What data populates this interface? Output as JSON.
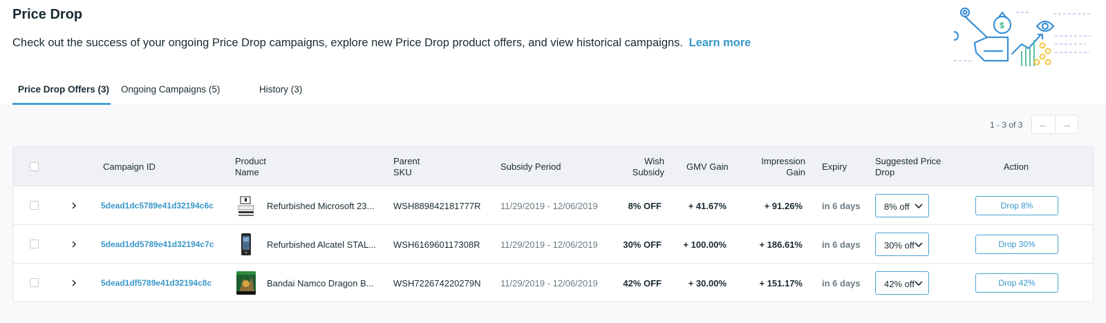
{
  "header": {
    "title": "Price Drop",
    "description": "Check out the success of your ongoing Price Drop campaigns, explore new Price Drop product offers, and view historical campaigns.",
    "learn_more": "Learn more"
  },
  "illustration": {
    "icon": "price-drop-illustration",
    "dollar_sign": "$"
  },
  "tabs": [
    {
      "label": "Price Drop Offers (3)",
      "active": true
    },
    {
      "label": "Ongoing Campaigns (5)",
      "active": false
    },
    {
      "label": "History (3)",
      "active": false
    }
  ],
  "pager": {
    "text": "1 - 3 of 3",
    "prev_icon": "arrow-left-icon",
    "next_icon": "arrow-right-icon",
    "prev_glyph": "←",
    "next_glyph": "→"
  },
  "table": {
    "columns": [
      {
        "line1": "Campaign ID",
        "line2": ""
      },
      {
        "line1": "Product",
        "line2": "Name"
      },
      {
        "line1": "Parent",
        "line2": "SKU"
      },
      {
        "line1": "Subsidy Period",
        "line2": ""
      },
      {
        "line1": "Wish",
        "line2": "Subsidy"
      },
      {
        "line1": "GMV Gain",
        "line2": ""
      },
      {
        "line1": "Impression",
        "line2": "Gain"
      },
      {
        "line1": "Expiry",
        "line2": ""
      },
      {
        "line1": "Suggested Price",
        "line2": "Drop"
      },
      {
        "line1": "Action",
        "line2": ""
      }
    ],
    "rows": [
      {
        "campaign_id": "5dead1dc5789e41d32194c6c",
        "product_name": "Refurbished Microsoft 23...",
        "parent_sku": "WSH889842181777R",
        "subsidy_period": "11/29/2019 - 12/06/2019",
        "wish_subsidy": "8% OFF",
        "gmv_gain": "+ 41.67%",
        "impression_gain": "+ 91.26%",
        "expiry": "in 6 days",
        "suggested_drop": "8% off",
        "action": "Drop 8%"
      },
      {
        "campaign_id": "5dead1dd5789e41d32194c7c",
        "product_name": "Refurbished Alcatel STAL...",
        "parent_sku": "WSH616960117308R",
        "subsidy_period": "11/29/2019 - 12/06/2019",
        "wish_subsidy": "30% OFF",
        "gmv_gain": "+ 100.00%",
        "impression_gain": "+ 186.61%",
        "expiry": "in 6 days",
        "suggested_drop": "30% off",
        "action": "Drop 30%"
      },
      {
        "campaign_id": "5dead1df5789e41d32194c8c",
        "product_name": "Bandai Namco Dragon B...",
        "parent_sku": "WSH722674220279N",
        "subsidy_period": "11/29/2019 - 12/06/2019",
        "wish_subsidy": "42% OFF",
        "gmv_gain": "+ 30.00%",
        "impression_gain": "+ 151.17%",
        "expiry": "in 6 days",
        "suggested_drop": "42% off",
        "action": "Drop 42%"
      }
    ]
  },
  "colors": {
    "accent": "#4aa1d3",
    "link": "#3897c9",
    "text": "#192a32",
    "muted": "#6b7a82"
  }
}
